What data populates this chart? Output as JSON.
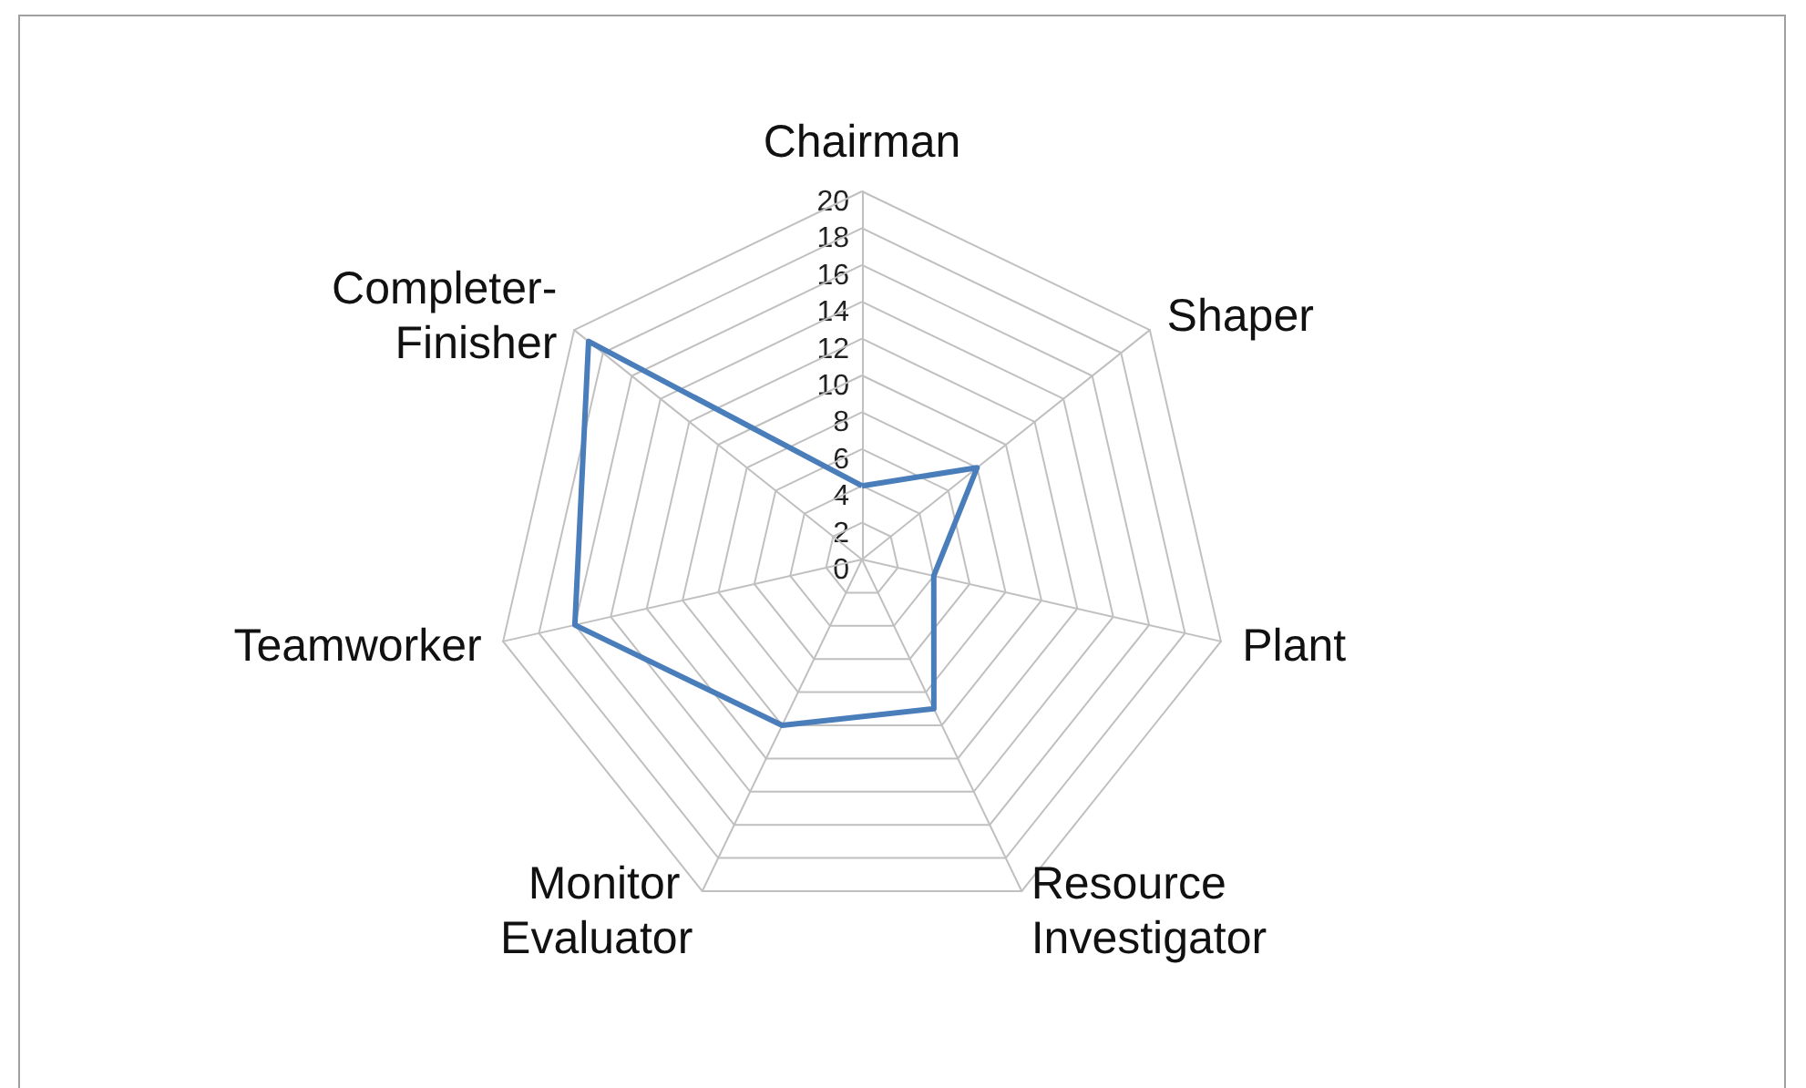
{
  "chart_data": {
    "type": "radar",
    "categories": [
      "Chairman",
      "Shaper",
      "Plant",
      "Resource Investigator",
      "Monitor Evaluator",
      "Teamworker",
      "Completer-Finisher"
    ],
    "series": [
      {
        "color": "#4a7ebb",
        "values": [
          4,
          8,
          4,
          9,
          10,
          16,
          19
        ]
      }
    ],
    "ylim": [
      0,
      20
    ],
    "yticks": [
      0,
      2,
      4,
      6,
      8,
      10,
      12,
      14,
      16,
      18,
      20
    ],
    "grid": true,
    "marker": "none"
  }
}
